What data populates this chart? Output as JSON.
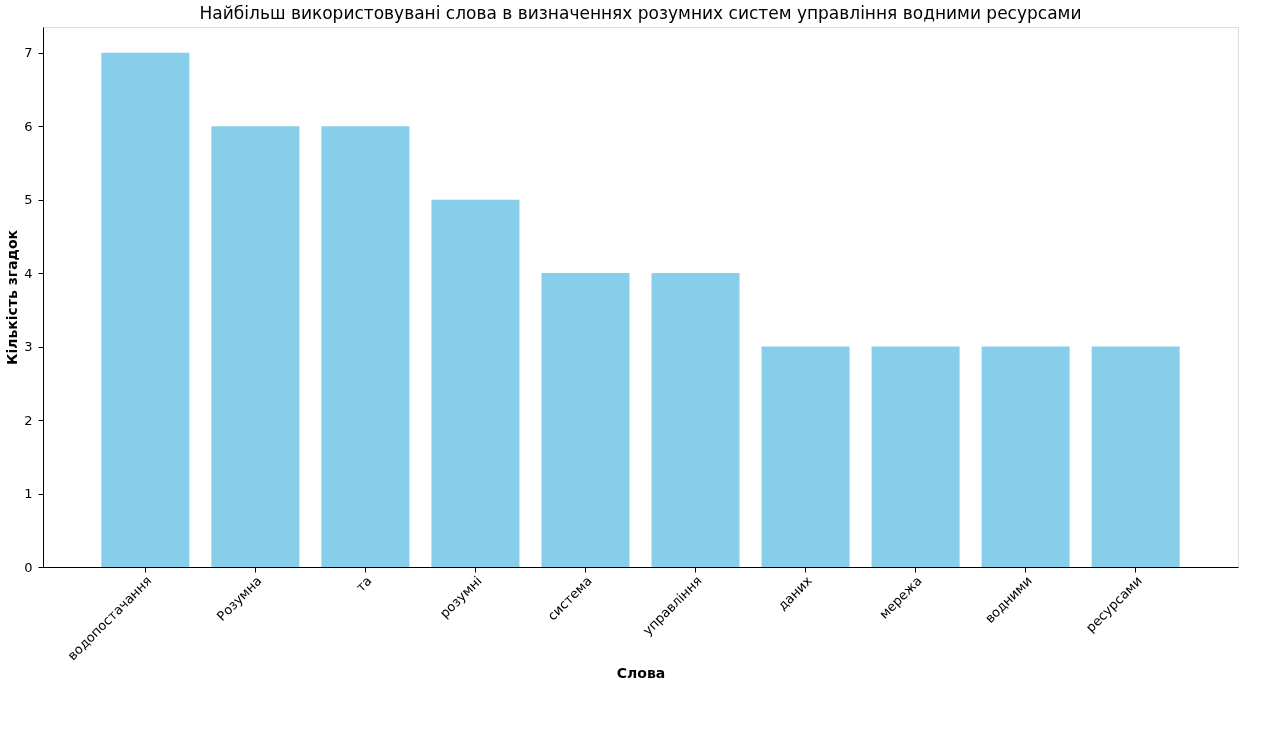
{
  "chart_data": {
    "type": "bar",
    "title": "Найбільш використовувані слова в визначеннях розумних систем управління водними ресурсами",
    "xlabel": "Слова",
    "ylabel": "Кількість згадок",
    "categories": [
      "водопостачання",
      "Розумна",
      "та",
      "розумні",
      "система",
      "управління",
      "даних",
      "мережа",
      "водними",
      "ресурсами"
    ],
    "values": [
      7,
      6,
      6,
      5,
      4,
      4,
      3,
      3,
      3,
      3
    ],
    "color": "#87ceeb",
    "ylim": [
      0,
      7.35
    ],
    "yticks": [
      0,
      1,
      2,
      3,
      4,
      5,
      6,
      7
    ],
    "grid": false
  }
}
